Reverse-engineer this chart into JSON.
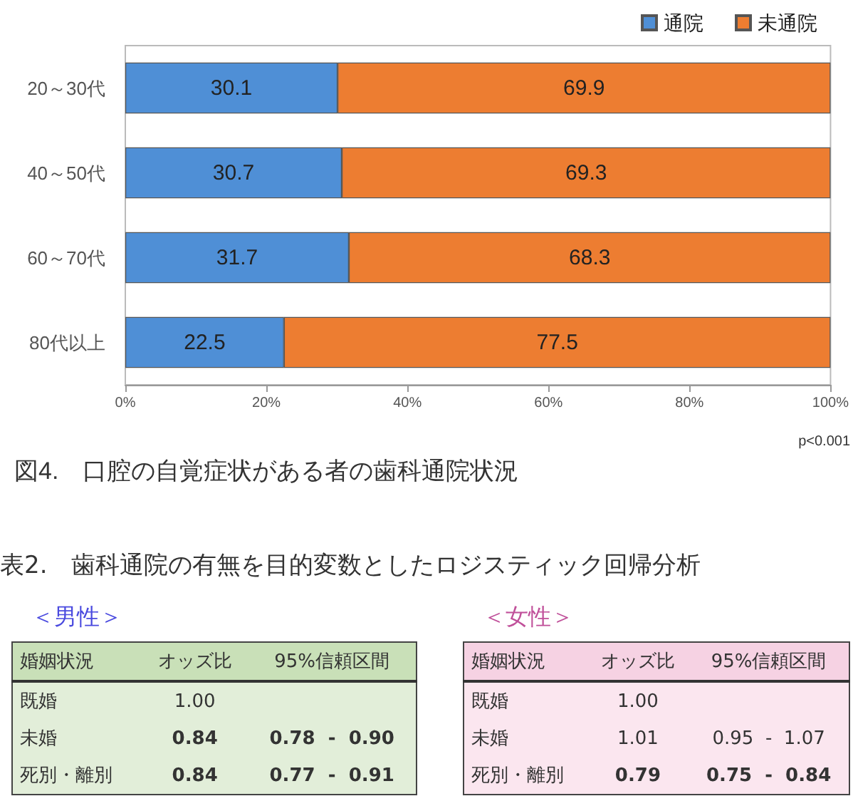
{
  "chart_data": [
    {
      "type": "bar",
      "orientation": "horizontal",
      "stacked": true,
      "title": "図4.　口腔の自覚症状がある者の歯科通院状況",
      "categories": [
        "20～30代",
        "40～50代",
        "60～70代",
        "80代以上"
      ],
      "series": [
        {
          "name": "通院",
          "color": "#4f8fd6",
          "values": [
            30.1,
            30.7,
            31.7,
            22.5
          ]
        },
        {
          "name": "未通院",
          "color": "#ed7d31",
          "values": [
            69.9,
            69.3,
            68.3,
            77.5
          ]
        }
      ],
      "xlim": [
        0,
        100
      ],
      "xticks": [
        {
          "value": 0,
          "label": "0%"
        },
        {
          "value": 20,
          "label": "20%"
        },
        {
          "value": 40,
          "label": "40%"
        },
        {
          "value": 60,
          "label": "60%"
        },
        {
          "value": 80,
          "label": "80%"
        },
        {
          "value": 100,
          "label": "100%"
        }
      ],
      "grid": false,
      "legend": "top right",
      "data_labels": true,
      "annotations": [
        "p<0.001"
      ]
    },
    {
      "type": "other",
      "title": "表2.　歯科通院の有無を目的変数としたロジスティック回帰分析"
    },
    {
      "type": "other",
      "title": "＜男性＞",
      "legend_title": "婚姻状況",
      "categories": [
        "既婚",
        "未婚",
        "死別・離別"
      ],
      "data_labels": true,
      "series": [
        {
          "name": "オッズ比",
          "values": [
            1.0,
            0.84,
            0.84
          ],
          "value_labels": [
            "1.00",
            "0.84",
            "0.84"
          ]
        },
        {
          "name": "95%信頼区間",
          "values": [
            null,
            0.78,
            0.77
          ],
          "value_labels": [
            null,
            "0.78",
            "0.77"
          ]
        },
        {
          "values": [
            null,
            0.9,
            0.91
          ],
          "value_labels": [
            null,
            "0.90",
            "0.91"
          ]
        }
      ],
      "annotations": [
        "-"
      ]
    },
    {
      "type": "other",
      "title": "＜女性＞",
      "legend_title": "婚姻状況",
      "categories": [
        "既婚",
        "未婚",
        "死別・離別"
      ],
      "data_labels": true,
      "series": [
        {
          "name": "オッズ比",
          "values": [
            1.0,
            1.01,
            0.79
          ],
          "value_labels": [
            "1.00",
            "1.01",
            "0.79"
          ]
        },
        {
          "name": "95%信頼区間",
          "values": [
            null,
            0.95,
            0.75
          ],
          "value_labels": [
            null,
            "0.95",
            "0.75"
          ]
        },
        {
          "values": [
            null,
            1.07,
            0.84
          ],
          "value_labels": [
            null,
            "1.07",
            "0.84"
          ]
        }
      ],
      "annotations": [
        "-"
      ]
    }
  ]
}
